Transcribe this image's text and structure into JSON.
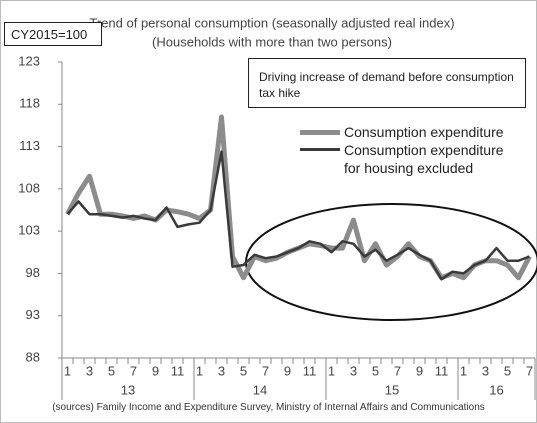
{
  "chart_data": {
    "type": "line",
    "title": "Trend of personal consumption (seasonally adjusted real index)",
    "subtitle": "(Households with more than two persons)",
    "base_note": "CY2015=100",
    "annotation": "Driving increase of demand before consumption tax hike",
    "source": "(sources) Family Income and Expenditure Survey, Ministry of Internal Affairs and Communications",
    "categories": [
      "1",
      null,
      "3",
      null,
      "5",
      null,
      "7",
      null,
      "9",
      null,
      "11",
      null,
      "1",
      null,
      "3",
      null,
      "5",
      null,
      "7",
      null,
      "9",
      null,
      "11",
      null,
      "1",
      null,
      "3",
      null,
      "5",
      null,
      "7",
      null,
      "9",
      null,
      "11",
      null,
      "1",
      null,
      "3",
      null,
      "5",
      null,
      "7"
    ],
    "years": [
      "13",
      "14",
      "15",
      "16"
    ],
    "ylim": [
      88,
      123
    ],
    "yticks": [
      88,
      93,
      98,
      103,
      108,
      113,
      118,
      123
    ],
    "series": [
      {
        "name": "Consumption expenditure",
        "color": "#8c8c8c",
        "values": [
          105,
          107.5,
          109.5,
          105,
          105,
          104.8,
          104.5,
          104.8,
          104.3,
          105.5,
          105.3,
          105,
          104.5,
          105.5,
          116.5,
          100,
          97.5,
          100,
          99.5,
          99.8,
          100.5,
          101,
          101.5,
          101.3,
          101,
          101,
          104.3,
          99.5,
          101.5,
          99,
          100,
          101.5,
          100,
          99.5,
          97.5,
          98,
          97.5,
          99,
          99.5,
          99.5,
          99,
          97.5,
          100
        ]
      },
      {
        "name": "Consumption expenditure for housing excluded",
        "color": "#3a3a3a",
        "values": [
          105,
          106.5,
          105,
          105,
          104.8,
          104.6,
          104.8,
          104.5,
          104.3,
          105.8,
          103.5,
          103.8,
          104,
          105.5,
          112.4,
          98.8,
          99,
          100.2,
          99.8,
          100,
          100.5,
          101,
          101.8,
          101.5,
          100.5,
          101.8,
          101.5,
          100,
          100.8,
          99.5,
          100.2,
          101,
          100.2,
          99.5,
          97.3,
          98.2,
          98,
          99,
          99.5,
          101,
          99.5,
          99.5,
          100
        ]
      }
    ]
  }
}
